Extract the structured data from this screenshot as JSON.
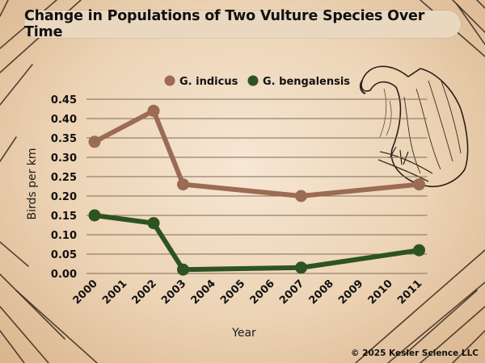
{
  "title": "Change in Populations of  Two Vulture Species Over Time",
  "credit": "© 2025 Kesler Science LLC",
  "illustration": "vulture-sketch",
  "chart_data": {
    "type": "line",
    "title": "Change in Populations of  Two Vulture Species Over Time",
    "xlabel": "Year",
    "ylabel": "Birds per km",
    "categories": [
      "2000",
      "2001",
      "2002",
      "2003",
      "2004",
      "2005",
      "2006",
      "2007",
      "2008",
      "2009",
      "2010",
      "2011"
    ],
    "ylim": [
      0,
      0.45
    ],
    "yticks": [
      "0.00",
      "0.05",
      "0.10",
      "0.15",
      "0.20",
      "0.25",
      "0.30",
      "0.35",
      "0.40",
      "0.45"
    ],
    "grid": true,
    "legend_position": "top",
    "series": [
      {
        "name": "G. indicus",
        "color": "#9c6b54",
        "points": [
          {
            "x": "2000",
            "y": 0.34
          },
          {
            "x": "2002",
            "y": 0.42
          },
          {
            "x": "2003",
            "y": 0.23
          },
          {
            "x": "2007",
            "y": 0.2
          },
          {
            "x": "2011",
            "y": 0.23
          }
        ]
      },
      {
        "name": "G. bengalensis",
        "color": "#2d5420",
        "points": [
          {
            "x": "2000",
            "y": 0.15
          },
          {
            "x": "2002",
            "y": 0.13
          },
          {
            "x": "2003",
            "y": 0.01
          },
          {
            "x": "2007",
            "y": 0.015
          },
          {
            "x": "2011",
            "y": 0.06
          }
        ]
      }
    ]
  }
}
